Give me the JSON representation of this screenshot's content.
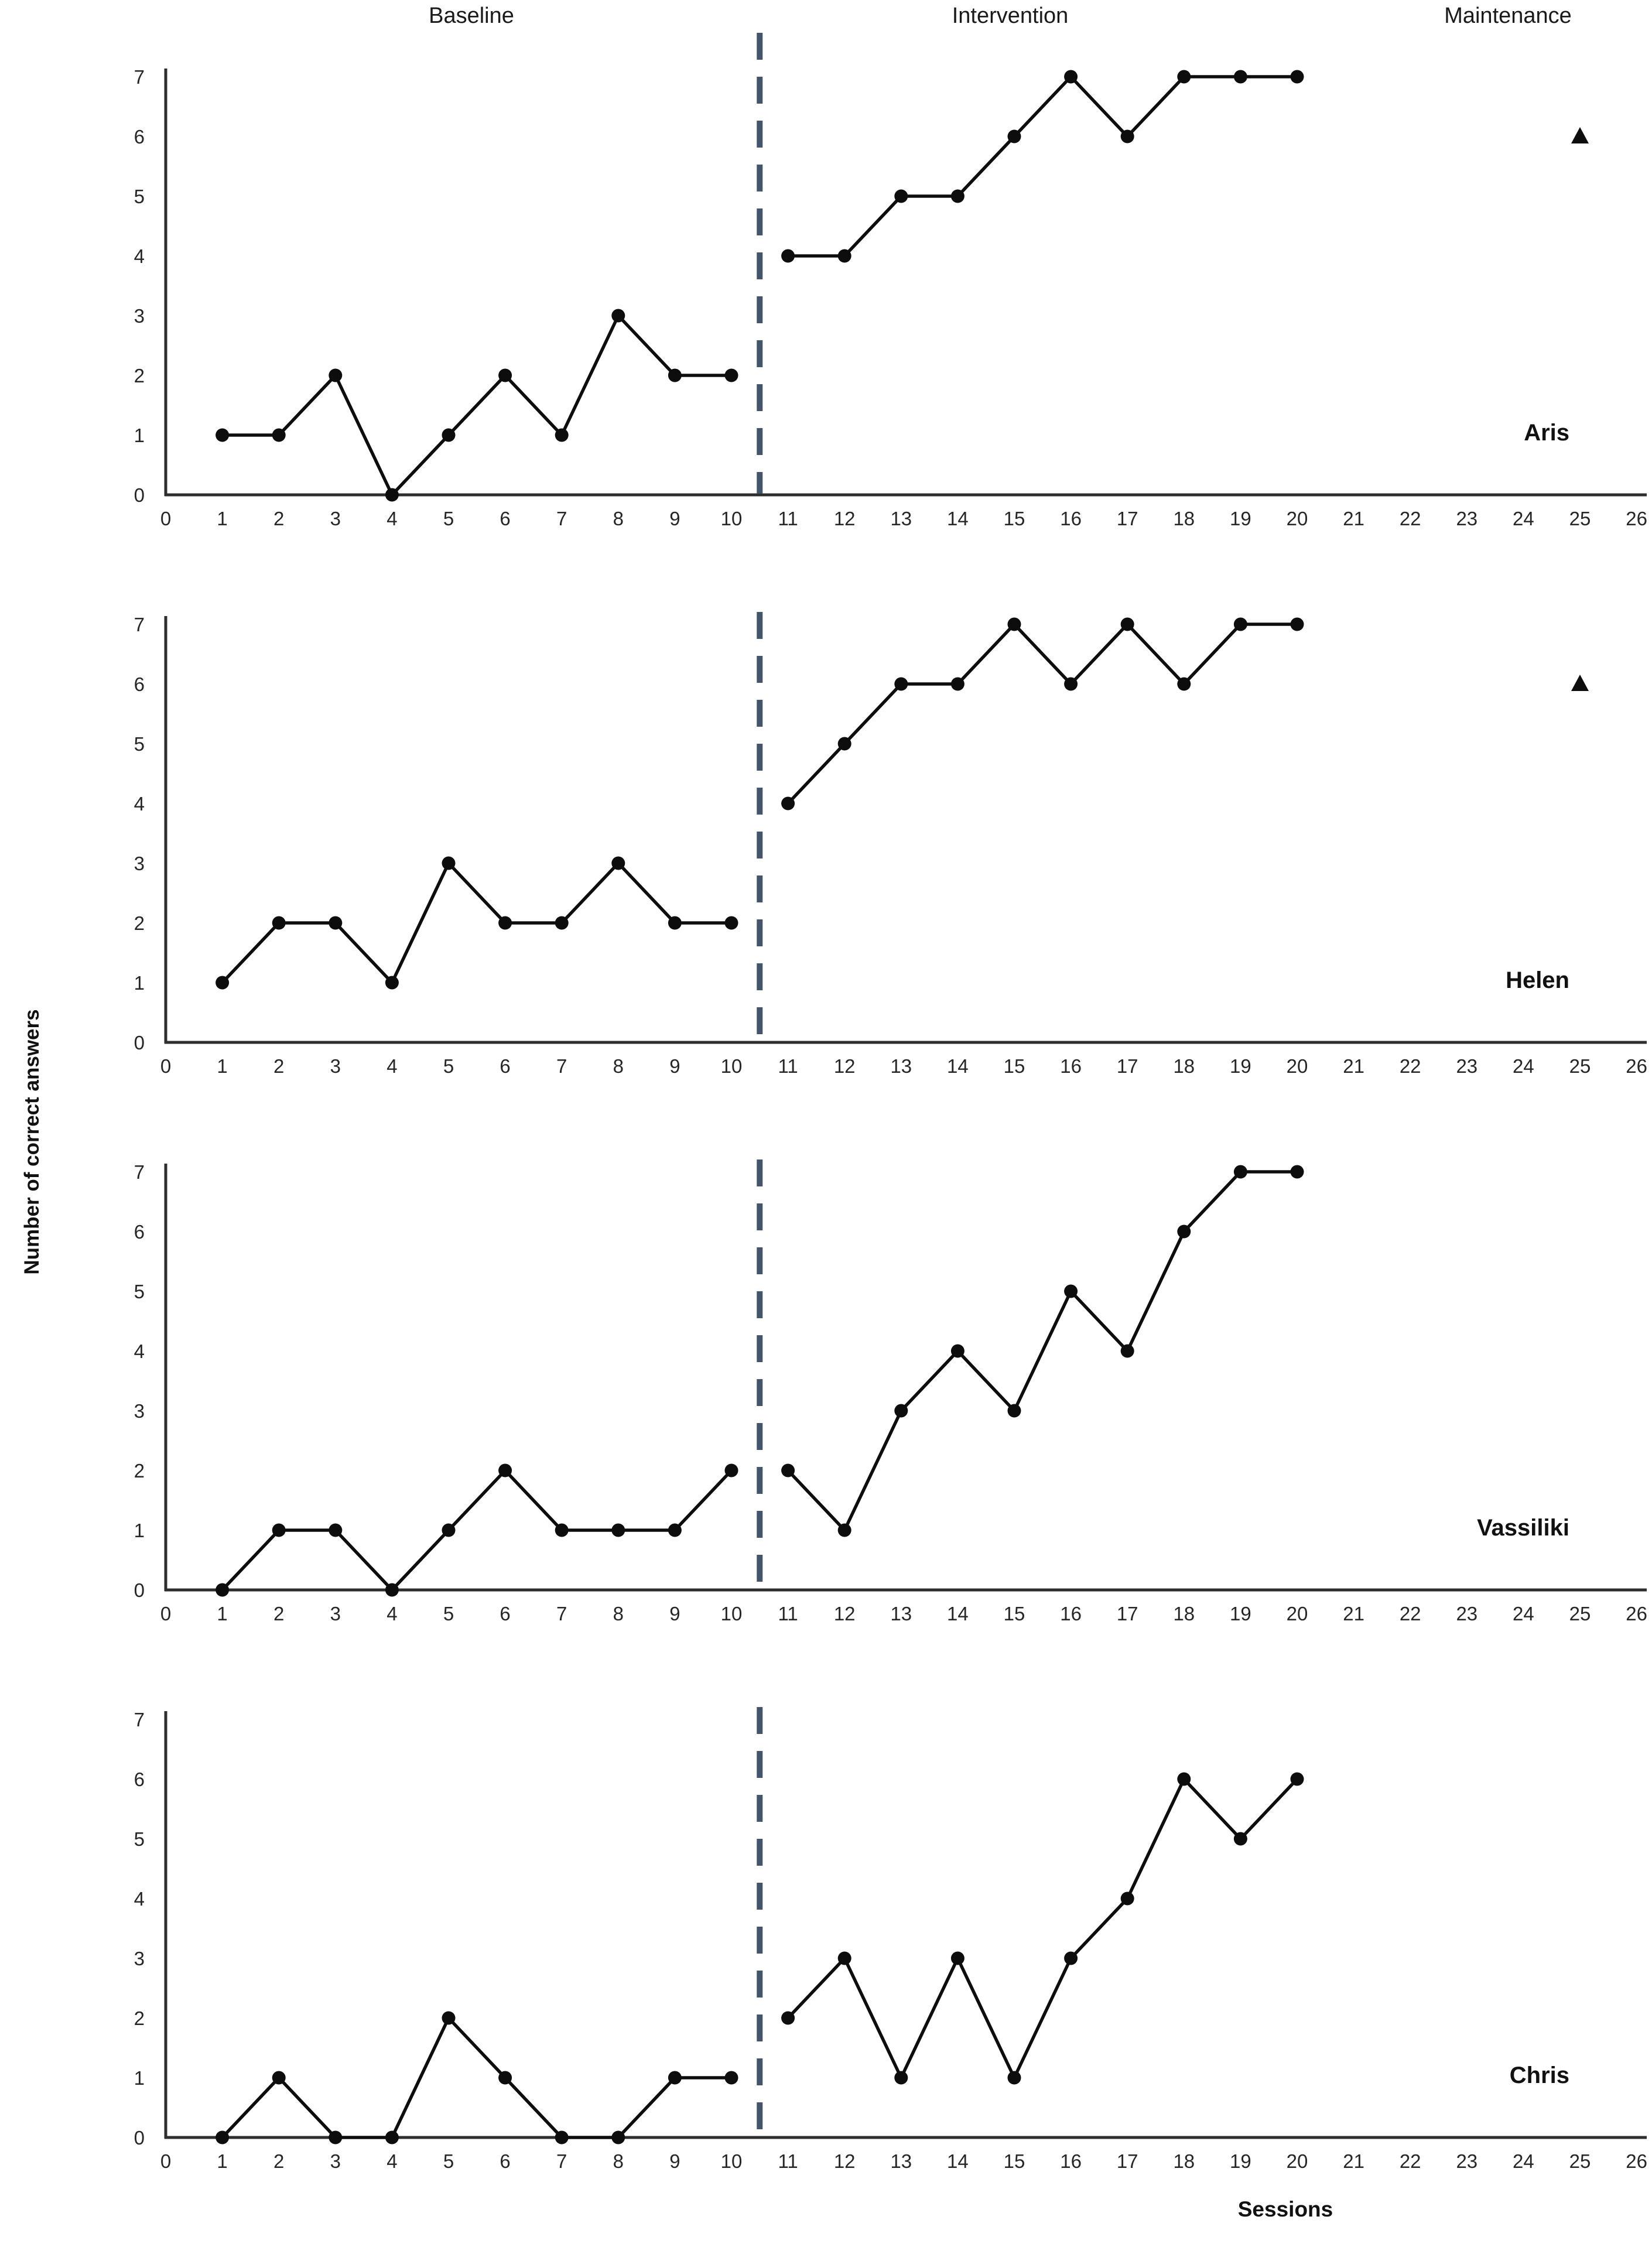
{
  "figure": {
    "ylabel": "Number of correct answers",
    "xlabel": "Sessions",
    "phase_labels": [
      "Baseline",
      "Intervention",
      "Maintenance"
    ],
    "colors": {
      "series": "#0d0d0d",
      "marker": "#0d0d0d",
      "phase_line": "#44546a",
      "axis": "#2e2e2e",
      "tick_text": "#262626",
      "label_text": "#111111"
    }
  },
  "chart_data": {
    "type": "line",
    "design": "multiple-baseline across participants",
    "title": "",
    "xlabel": "Sessions",
    "ylabel": "Number of correct answers",
    "x_axis": {
      "min": 0,
      "max": 26,
      "ticks": [
        0,
        1,
        2,
        3,
        4,
        5,
        6,
        7,
        8,
        9,
        10,
        11,
        12,
        13,
        14,
        15,
        16,
        17,
        18,
        19,
        20,
        21,
        22,
        23,
        24,
        25,
        26
      ]
    },
    "y_axis": {
      "min": 0,
      "max": 7,
      "ticks": [
        0,
        1,
        2,
        3,
        4,
        5,
        6,
        7
      ]
    },
    "phase_change_x": 10.5,
    "phases": [
      "Baseline",
      "Intervention",
      "Maintenance"
    ],
    "panels": [
      {
        "participant": "Aris",
        "baseline": {
          "sessions": [
            1,
            2,
            3,
            4,
            5,
            6,
            7,
            8,
            9,
            10
          ],
          "values": [
            1,
            1,
            2,
            0,
            1,
            2,
            1,
            3,
            2,
            2
          ]
        },
        "intervention": {
          "sessions": [
            11,
            12,
            13,
            14,
            15,
            16,
            17,
            18,
            19,
            20
          ],
          "values": [
            4,
            4,
            5,
            5,
            6,
            7,
            6,
            7,
            7,
            7
          ]
        },
        "maintenance": {
          "sessions": [
            25
          ],
          "values": [
            6
          ],
          "marker": "triangle"
        }
      },
      {
        "participant": "Helen",
        "baseline": {
          "sessions": [
            1,
            2,
            3,
            4,
            5,
            6,
            7,
            8,
            9,
            10
          ],
          "values": [
            1,
            2,
            2,
            1,
            3,
            2,
            2,
            3,
            2,
            2
          ]
        },
        "intervention": {
          "sessions": [
            11,
            12,
            13,
            14,
            15,
            16,
            17,
            18,
            19,
            20
          ],
          "values": [
            4,
            5,
            6,
            6,
            7,
            6,
            7,
            6,
            7,
            7
          ]
        },
        "maintenance": {
          "sessions": [
            25
          ],
          "values": [
            6
          ],
          "marker": "triangle"
        }
      },
      {
        "participant": "Vassiliki",
        "baseline": {
          "sessions": [
            1,
            2,
            3,
            4,
            5,
            6,
            7,
            8,
            9,
            10
          ],
          "values": [
            0,
            1,
            1,
            0,
            1,
            2,
            1,
            1,
            1,
            2
          ]
        },
        "intervention": {
          "sessions": [
            11,
            12,
            13,
            14,
            15,
            16,
            17,
            18,
            19,
            20
          ],
          "values": [
            2,
            1,
            3,
            4,
            3,
            5,
            4,
            6,
            7,
            7
          ]
        },
        "maintenance": {
          "sessions": [],
          "values": [],
          "marker": "triangle"
        }
      },
      {
        "participant": "Chris",
        "baseline": {
          "sessions": [
            1,
            2,
            3,
            4,
            5,
            6,
            7,
            8,
            9,
            10
          ],
          "values": [
            0,
            1,
            0,
            0,
            2,
            1,
            0,
            0,
            1,
            1
          ]
        },
        "intervention": {
          "sessions": [
            11,
            12,
            13,
            14,
            15,
            16,
            17,
            18,
            19,
            20
          ],
          "values": [
            2,
            3,
            1,
            3,
            1,
            3,
            4,
            6,
            5,
            6
          ]
        },
        "maintenance": {
          "sessions": [],
          "values": [],
          "marker": "triangle"
        }
      }
    ]
  }
}
